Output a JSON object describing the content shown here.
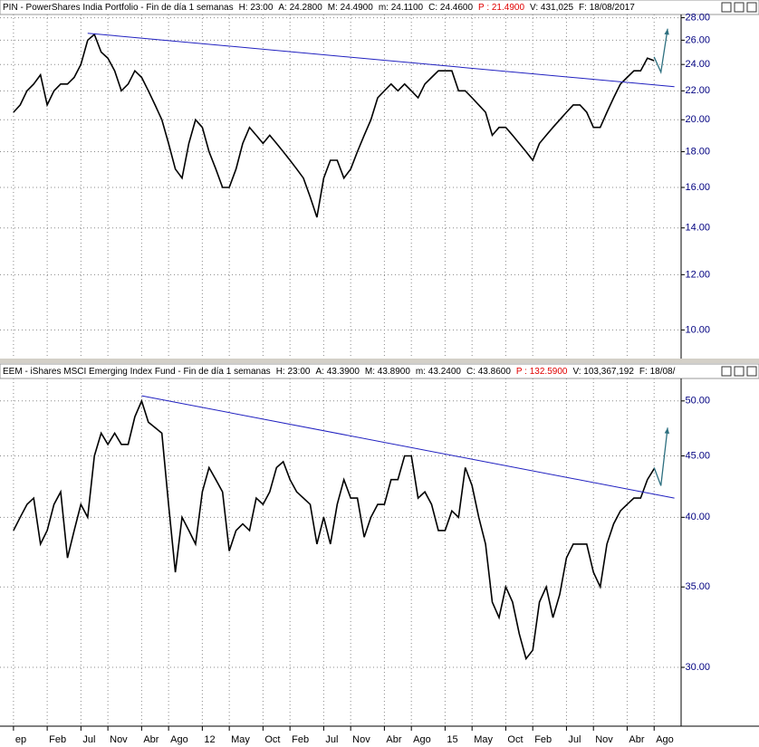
{
  "chart_data": [
    {
      "type": "line",
      "log": true,
      "grid": true,
      "header": [
        {
          "text": "PIN - PowerShares India Portfolio - Fin de día 1 semanas",
          "color": "#000000"
        },
        {
          "text": "H: 23:00",
          "color": "#000000"
        },
        {
          "text": "A: 24.2800",
          "color": "#000000"
        },
        {
          "text": "M: 24.4900",
          "color": "#000000"
        },
        {
          "text": "m: 24.1100",
          "color": "#000000"
        },
        {
          "text": "C: 24.4600",
          "color": "#000000"
        },
        {
          "text": "P : 21.4900",
          "color": "#e00000"
        },
        {
          "text": "V: 431,025",
          "color": "#000000"
        },
        {
          "text": "F: 18/08/2017",
          "color": "#000000"
        }
      ],
      "xlim": [
        "2009-07",
        "2017-12"
      ],
      "ylim": [
        9.1,
        28.3
      ],
      "yticks": [
        {
          "value": 10,
          "label": "10.00"
        },
        {
          "value": 12,
          "label": "12.00"
        },
        {
          "value": 14,
          "label": "14.00"
        },
        {
          "value": 16,
          "label": "16.00"
        },
        {
          "value": 18,
          "label": "18.00"
        },
        {
          "value": 20,
          "label": "20.00"
        },
        {
          "value": 22,
          "label": "22.00"
        },
        {
          "value": 24,
          "label": "24.00"
        },
        {
          "value": 26,
          "label": "26.00"
        },
        {
          "value": 28,
          "label": "28.00"
        }
      ],
      "series": [
        {
          "color": "#000000",
          "x": [
            "2009-09",
            "2009-10",
            "2009-11",
            "2009-12",
            "2010-01",
            "2010-02",
            "2010-03",
            "2010-04",
            "2010-05",
            "2010-06",
            "2010-07",
            "2010-08",
            "2010-09",
            "2010-10",
            "2010-11",
            "2010-12",
            "2011-01",
            "2011-02",
            "2011-03",
            "2011-04",
            "2011-05",
            "2011-06",
            "2011-07",
            "2011-08",
            "2011-09",
            "2011-10",
            "2011-11",
            "2011-12",
            "2012-01",
            "2012-02",
            "2012-03",
            "2012-04",
            "2012-05",
            "2012-06",
            "2012-07",
            "2012-08",
            "2012-09",
            "2012-10",
            "2012-11",
            "2012-12",
            "2013-01",
            "2013-02",
            "2013-03",
            "2013-04",
            "2013-05",
            "2013-06",
            "2013-07",
            "2013-08",
            "2013-09",
            "2013-10",
            "2013-11",
            "2013-12",
            "2014-01",
            "2014-02",
            "2014-03",
            "2014-04",
            "2014-05",
            "2014-06",
            "2014-07",
            "2014-08",
            "2014-09",
            "2014-10",
            "2014-11",
            "2014-12",
            "2015-01",
            "2015-02",
            "2015-03",
            "2015-04",
            "2015-05",
            "2015-06",
            "2015-07",
            "2015-08",
            "2015-09",
            "2015-10",
            "2015-11",
            "2015-12",
            "2016-01",
            "2016-02",
            "2016-03",
            "2016-04",
            "2016-05",
            "2016-06",
            "2016-07",
            "2016-08",
            "2016-09",
            "2016-10",
            "2016-11",
            "2016-12",
            "2017-01",
            "2017-02",
            "2017-03",
            "2017-04",
            "2017-05",
            "2017-06",
            "2017-07",
            "2017-08"
          ],
          "values": [
            20.5,
            21,
            22,
            22.5,
            23.2,
            21,
            22,
            22.5,
            22.5,
            23,
            24,
            26,
            26.5,
            25,
            24.5,
            23.5,
            22,
            22.5,
            23.5,
            23,
            22,
            21,
            20,
            18.5,
            17,
            16.5,
            18.5,
            20,
            19.5,
            18,
            17,
            16,
            16,
            17,
            18.5,
            19.5,
            19,
            18.5,
            19,
            18.5,
            18,
            17.5,
            17,
            16.5,
            15.5,
            14.5,
            16.5,
            17.5,
            17.5,
            16.5,
            17,
            18,
            19,
            20,
            21.5,
            22,
            22.5,
            22,
            22.5,
            22,
            21.5,
            22.5,
            23,
            23.5,
            23.5,
            23.5,
            22,
            22,
            21.5,
            21,
            20.5,
            19,
            19.5,
            19.5,
            19,
            18.5,
            18,
            17.5,
            18.5,
            19,
            19.5,
            20,
            20.5,
            21,
            21,
            20.5,
            19.5,
            19.5,
            20.5,
            21.5,
            22.5,
            23,
            23.5,
            23.5,
            24.5,
            24.3
          ]
        }
      ],
      "trendline": {
        "color": "#2020c0",
        "x": [
          "2010-08",
          "2017-11"
        ],
        "values": [
          26.6,
          22.3
        ]
      },
      "projection": {
        "color": "#2e7080",
        "x": [
          "2017-08",
          "2017-09",
          "2017-10"
        ],
        "values": [
          24.6,
          23.4,
          27
        ]
      }
    },
    {
      "type": "line",
      "log": true,
      "grid": true,
      "header": [
        {
          "text": "EEM - iShares MSCI Emerging Index Fund - Fin de día 1 semanas",
          "color": "#000000"
        },
        {
          "text": "H: 23:00",
          "color": "#000000"
        },
        {
          "text": "A: 43.3900",
          "color": "#000000"
        },
        {
          "text": "M: 43.8900",
          "color": "#000000"
        },
        {
          "text": "m: 43.2400",
          "color": "#000000"
        },
        {
          "text": "C: 43.8600",
          "color": "#000000"
        },
        {
          "text": "P : 132.5900",
          "color": "#e00000"
        },
        {
          "text": "V: 103,367,192",
          "color": "#000000"
        },
        {
          "text": "F: 18/08/",
          "color": "#000000"
        }
      ],
      "xlim": [
        "2009-07",
        "2017-12"
      ],
      "xticks": [
        {
          "value": "2009-09",
          "label": "ep"
        },
        {
          "value": "2010-02",
          "label": "Feb"
        },
        {
          "value": "2010-07",
          "label": "Jul"
        },
        {
          "value": "2010-11",
          "label": "Nov"
        },
        {
          "value": "2011-04",
          "label": "Abr"
        },
        {
          "value": "2011-08",
          "label": "Ago"
        },
        {
          "value": "2012-01",
          "label": "12"
        },
        {
          "value": "2012-05",
          "label": "May"
        },
        {
          "value": "2012-10",
          "label": "Oct"
        },
        {
          "value": "2013-02",
          "label": "Feb"
        },
        {
          "value": "2013-07",
          "label": "Jul"
        },
        {
          "value": "2013-11",
          "label": "Nov"
        },
        {
          "value": "2014-04",
          "label": "Abr"
        },
        {
          "value": "2014-08",
          "label": "Ago"
        },
        {
          "value": "2015-01",
          "label": "15"
        },
        {
          "value": "2015-05",
          "label": "May"
        },
        {
          "value": "2015-10",
          "label": "Oct"
        },
        {
          "value": "2016-02",
          "label": "Feb"
        },
        {
          "value": "2016-07",
          "label": "Jul"
        },
        {
          "value": "2016-11",
          "label": "Nov"
        },
        {
          "value": "2017-04",
          "label": "Abr"
        },
        {
          "value": "2017-08",
          "label": "Ago"
        }
      ],
      "ylim": [
        26.8,
        52.2
      ],
      "yticks": [
        {
          "value": 30,
          "label": "30.00"
        },
        {
          "value": 35,
          "label": "35.00"
        },
        {
          "value": 40,
          "label": "40.00"
        },
        {
          "value": 45,
          "label": "45.00"
        },
        {
          "value": 50,
          "label": "50.00"
        }
      ],
      "series": [
        {
          "color": "#000000",
          "x": [
            "2009-09",
            "2009-10",
            "2009-11",
            "2009-12",
            "2010-01",
            "2010-02",
            "2010-03",
            "2010-04",
            "2010-05",
            "2010-06",
            "2010-07",
            "2010-08",
            "2010-09",
            "2010-10",
            "2010-11",
            "2010-12",
            "2011-01",
            "2011-02",
            "2011-03",
            "2011-04",
            "2011-05",
            "2011-06",
            "2011-07",
            "2011-08",
            "2011-09",
            "2011-10",
            "2011-11",
            "2011-12",
            "2012-01",
            "2012-02",
            "2012-03",
            "2012-04",
            "2012-05",
            "2012-06",
            "2012-07",
            "2012-08",
            "2012-09",
            "2012-10",
            "2012-11",
            "2012-12",
            "2013-01",
            "2013-02",
            "2013-03",
            "2013-04",
            "2013-05",
            "2013-06",
            "2013-07",
            "2013-08",
            "2013-09",
            "2013-10",
            "2013-11",
            "2013-12",
            "2014-01",
            "2014-02",
            "2014-03",
            "2014-04",
            "2014-05",
            "2014-06",
            "2014-07",
            "2014-08",
            "2014-09",
            "2014-10",
            "2014-11",
            "2014-12",
            "2015-01",
            "2015-02",
            "2015-03",
            "2015-04",
            "2015-05",
            "2015-06",
            "2015-07",
            "2015-08",
            "2015-09",
            "2015-10",
            "2015-11",
            "2015-12",
            "2016-01",
            "2016-02",
            "2016-03",
            "2016-04",
            "2016-05",
            "2016-06",
            "2016-07",
            "2016-08",
            "2016-09",
            "2016-10",
            "2016-11",
            "2016-12",
            "2017-01",
            "2017-02",
            "2017-03",
            "2017-04",
            "2017-05",
            "2017-06",
            "2017-07",
            "2017-08"
          ],
          "values": [
            39,
            40,
            41,
            41.5,
            38,
            39,
            41,
            42,
            37,
            39,
            41,
            40,
            45,
            47,
            46,
            47,
            46,
            46,
            48.5,
            50,
            48,
            47.5,
            47,
            41,
            36,
            40,
            39,
            38,
            42,
            44,
            43,
            42,
            37.5,
            39,
            39.5,
            39,
            41.5,
            41,
            42,
            44,
            44.5,
            43,
            42,
            41.5,
            41,
            38,
            40,
            38,
            41,
            43,
            41.5,
            41.5,
            38.5,
            40,
            41,
            41,
            43,
            43,
            45,
            45,
            41.5,
            42,
            41,
            39,
            39,
            40.5,
            40,
            44,
            42.5,
            40,
            38,
            34,
            33,
            35,
            34,
            32,
            30.5,
            31,
            34,
            35,
            33,
            34.5,
            37,
            38,
            38,
            38,
            36,
            35,
            38,
            39.5,
            40.5,
            41,
            41.5,
            41.5,
            43,
            43.9
          ]
        }
      ],
      "trendline": {
        "color": "#2020c0",
        "x": [
          "2011-04",
          "2017-11"
        ],
        "values": [
          50.5,
          41.5
        ]
      },
      "projection": {
        "color": "#2e7080",
        "x": [
          "2017-08",
          "2017-09",
          "2017-10"
        ],
        "values": [
          44,
          42.5,
          47.5
        ]
      }
    }
  ]
}
